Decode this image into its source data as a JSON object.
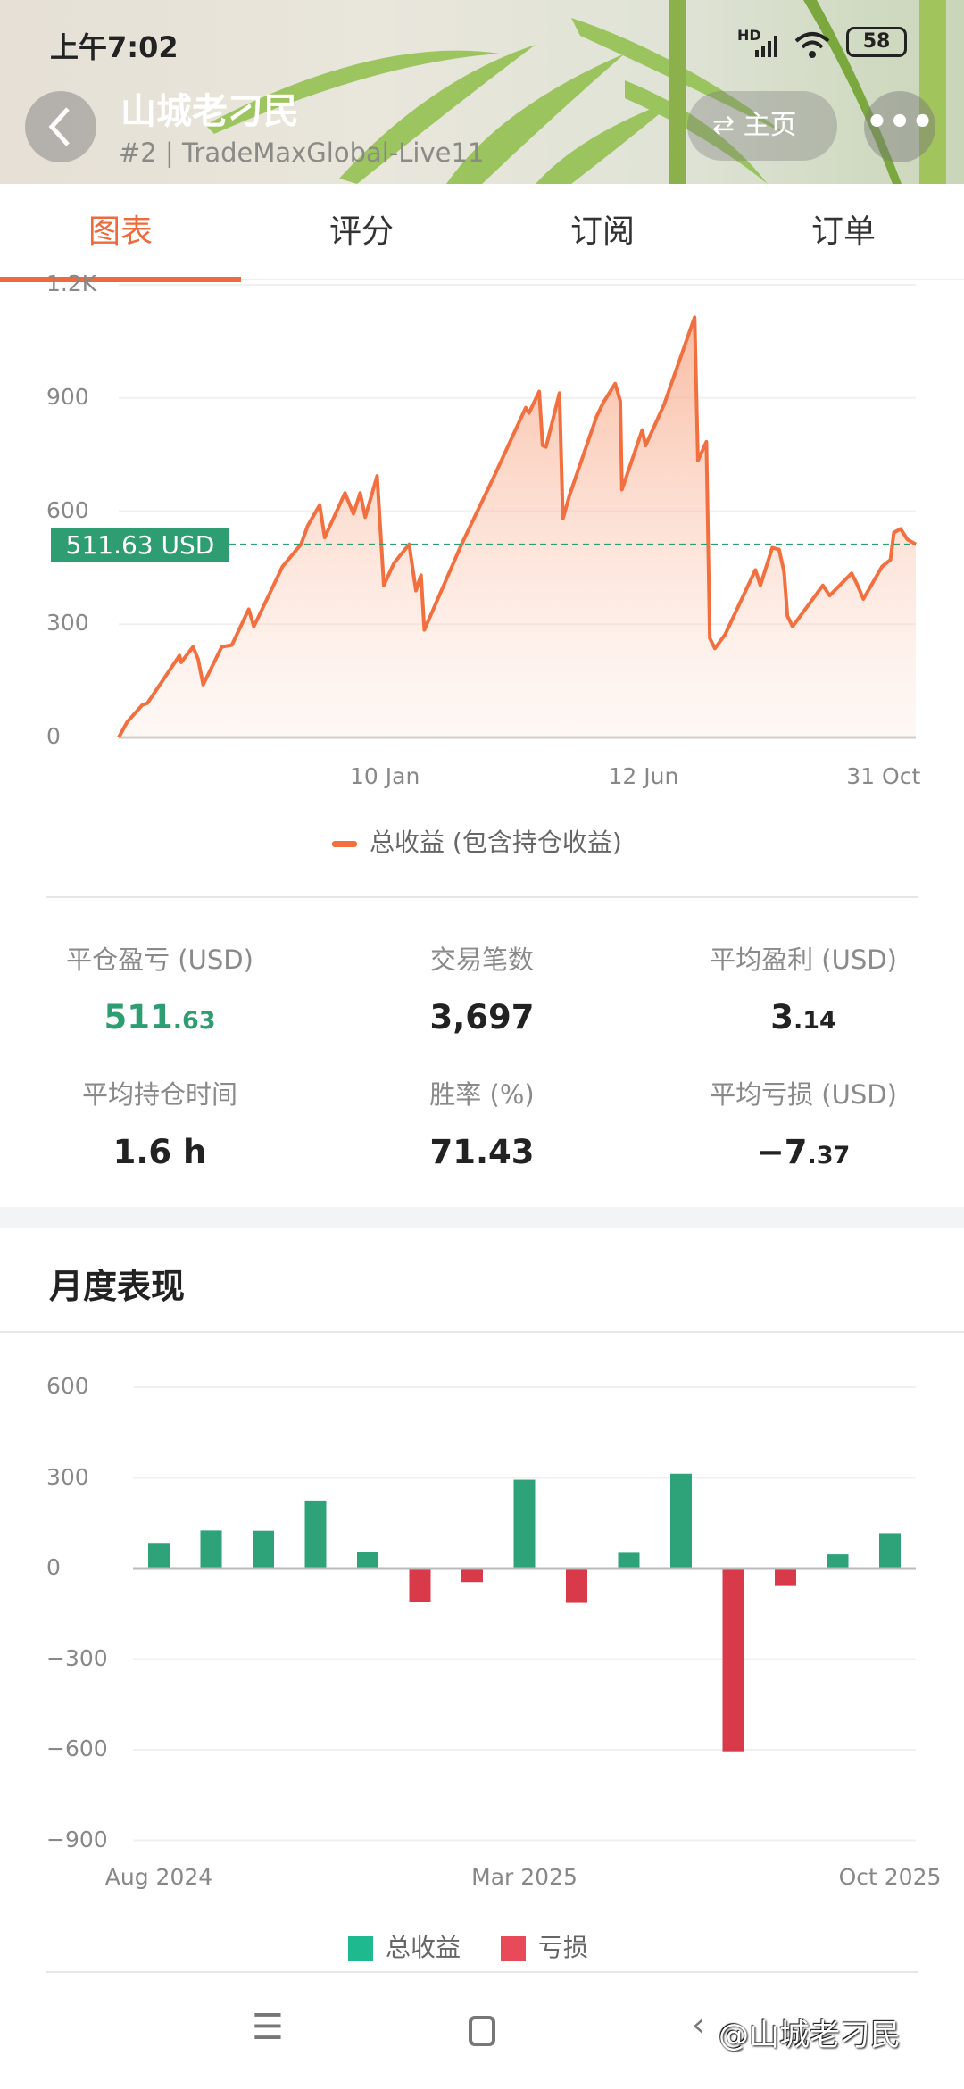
{
  "status_bar": {
    "time": "上午7:02",
    "network": "HD",
    "battery": "58"
  },
  "header": {
    "title": "山城老刁民",
    "subtitle": "#2 | TradeMaxGlobal-Live11",
    "home_label": "主页",
    "back_icon": "chevron-left-icon",
    "more_icon": "more-horizontal-icon",
    "swap_icon": "swap-arrows-icon"
  },
  "tabs": [
    {
      "label": "图表",
      "active": true
    },
    {
      "label": "评分"
    },
    {
      "label": "订阅"
    },
    {
      "label": "订单"
    }
  ],
  "colors": {
    "accent": "#ee6a3c",
    "line": "#f2703f",
    "profit": "#2ea37a",
    "loss": "#d93a4a",
    "tag": "#2e9e72"
  },
  "chart_data": [
    {
      "type": "area",
      "y_ticks": [
        {
          "v": 0,
          "label": "0"
        },
        {
          "v": 300,
          "label": "300"
        },
        {
          "v": 600,
          "label": "600"
        },
        {
          "v": 900,
          "label": "900"
        },
        {
          "v": 1200,
          "label": "1.2K"
        }
      ],
      "ylim": [
        0,
        1200
      ],
      "xlim": [
        "2024-08-06",
        "2025-11-21"
      ],
      "x_ticks": [
        {
          "date": "2025-01-10",
          "label": "10 Jan"
        },
        {
          "date": "2025-06-12",
          "label": "12 Jun"
        },
        {
          "date": "2025-10-31",
          "label": "31 Oct"
        }
      ],
      "current_value": 511.63,
      "current_label": "511.63 USD",
      "grid": true,
      "legend_position": "bottom",
      "series": [
        {
          "name": "总收益 (包含持仓收益)",
          "points": [
            [
              "2024-08-06",
              0
            ],
            [
              "2024-08-11",
              41
            ],
            [
              "2024-08-20",
              86
            ],
            [
              "2024-08-23",
              91
            ],
            [
              "2024-09-11",
              217
            ],
            [
              "2024-09-12",
              199
            ],
            [
              "2024-09-19",
              240
            ],
            [
              "2024-09-22",
              208
            ],
            [
              "2024-09-25",
              140
            ],
            [
              "2024-10-06",
              240
            ],
            [
              "2024-10-12",
              245
            ],
            [
              "2024-10-22",
              340
            ],
            [
              "2024-10-25",
              294
            ],
            [
              "2024-11-11",
              453
            ],
            [
              "2024-11-22",
              512
            ],
            [
              "2024-11-26",
              562
            ],
            [
              "2024-12-03",
              616
            ],
            [
              "2024-12-06",
              530
            ],
            [
              "2024-12-18",
              648
            ],
            [
              "2024-12-23",
              593
            ],
            [
              "2024-12-27",
              648
            ],
            [
              "2024-12-30",
              584
            ],
            [
              "2025-01-06",
              693
            ],
            [
              "2025-01-10",
              403
            ],
            [
              "2025-01-16",
              462
            ],
            [
              "2025-01-25",
              512
            ],
            [
              "2025-01-29",
              389
            ],
            [
              "2025-02-01",
              430
            ],
            [
              "2025-02-03",
              285
            ],
            [
              "2025-02-25",
              512
            ],
            [
              "2025-03-17",
              699
            ],
            [
              "2025-04-04",
              874
            ],
            [
              "2025-04-06",
              860
            ],
            [
              "2025-04-12",
              917
            ],
            [
              "2025-04-14",
              774
            ],
            [
              "2025-04-16",
              770
            ],
            [
              "2025-04-24",
              913
            ],
            [
              "2025-04-26",
              580
            ],
            [
              "2025-04-30",
              643
            ],
            [
              "2025-05-16",
              851
            ],
            [
              "2025-05-20",
              888
            ],
            [
              "2025-05-27",
              938
            ],
            [
              "2025-05-30",
              892
            ],
            [
              "2025-05-31",
              657
            ],
            [
              "2025-06-12",
              815
            ],
            [
              "2025-06-14",
              774
            ],
            [
              "2025-06-25",
              883
            ],
            [
              "2025-07-13",
              1114
            ],
            [
              "2025-07-15",
              734
            ],
            [
              "2025-07-20",
              784
            ],
            [
              "2025-07-22",
              263
            ],
            [
              "2025-07-25",
              236
            ],
            [
              "2025-07-31",
              272
            ],
            [
              "2025-08-18",
              444
            ],
            [
              "2025-08-21",
              403
            ],
            [
              "2025-08-28",
              503
            ],
            [
              "2025-09-01",
              498
            ],
            [
              "2025-09-04",
              439
            ],
            [
              "2025-09-06",
              322
            ],
            [
              "2025-09-09",
              294
            ],
            [
              "2025-09-27",
              403
            ],
            [
              "2025-10-01",
              376
            ],
            [
              "2025-10-14",
              435
            ],
            [
              "2025-10-17",
              408
            ],
            [
              "2025-10-21",
              367
            ],
            [
              "2025-11-01",
              453
            ],
            [
              "2025-11-06",
              471
            ],
            [
              "2025-11-08",
              543
            ],
            [
              "2025-11-12",
              553
            ],
            [
              "2025-11-16",
              525
            ],
            [
              "2025-11-21",
              512
            ]
          ]
        }
      ]
    },
    {
      "type": "bar",
      "title": "月度表现",
      "categories": [
        "Aug 2024",
        "Sep 2024",
        "Oct 2024",
        "Nov 2024",
        "Dec 2024",
        "Jan 2025",
        "Feb 2025",
        "Mar 2025",
        "Apr 2025",
        "May 2025",
        "Jun 2025",
        "Jul 2025",
        "Aug 2025",
        "Sep 2025",
        "Oct 2025"
      ],
      "values": [
        85,
        126,
        125,
        225,
        54,
        -112,
        -45,
        294,
        -114,
        52,
        314,
        -605,
        -58,
        47,
        117
      ],
      "x_tick_labels": [
        {
          "index": 0,
          "label": "Aug 2024"
        },
        {
          "index": 7,
          "label": "Mar 2025"
        },
        {
          "index": 14,
          "label": "Oct 2025"
        }
      ],
      "y_ticks": [
        {
          "v": 600,
          "label": "600"
        },
        {
          "v": 300,
          "label": "300"
        },
        {
          "v": 0,
          "label": "0"
        },
        {
          "v": -300,
          "label": "−300"
        },
        {
          "v": -600,
          "label": "−600"
        },
        {
          "v": -900,
          "label": "−900"
        }
      ],
      "ylim": [
        -900,
        600
      ],
      "grid": true,
      "legend": [
        {
          "name": "总收益",
          "color": "#1fb98f"
        },
        {
          "name": "亏损",
          "color": "#e84a5a"
        }
      ],
      "legend_position": "bottom"
    }
  ],
  "stats": [
    {
      "label": "平仓盈亏 (USD)",
      "int": "511",
      "dec": ".63",
      "color": "#2e9e72"
    },
    {
      "label": "交易笔数",
      "int": "3,697",
      "dec": ""
    },
    {
      "label": "平均盈利 (USD)",
      "int": "3",
      "dec": ".14"
    },
    {
      "label": "平均持仓时间",
      "int": "1.6 h",
      "dec": ""
    },
    {
      "label": "胜率 (%)",
      "int": "71.43",
      "dec": ""
    },
    {
      "label": "平均亏损 (USD)",
      "int": "−7",
      "dec": ".37"
    }
  ],
  "section_title": "月度表现",
  "nav": {
    "menu_icon": "menu-icon",
    "home_icon": "square-home-icon",
    "back_icon": "back-icon",
    "watermark": "@山城老刁民"
  }
}
